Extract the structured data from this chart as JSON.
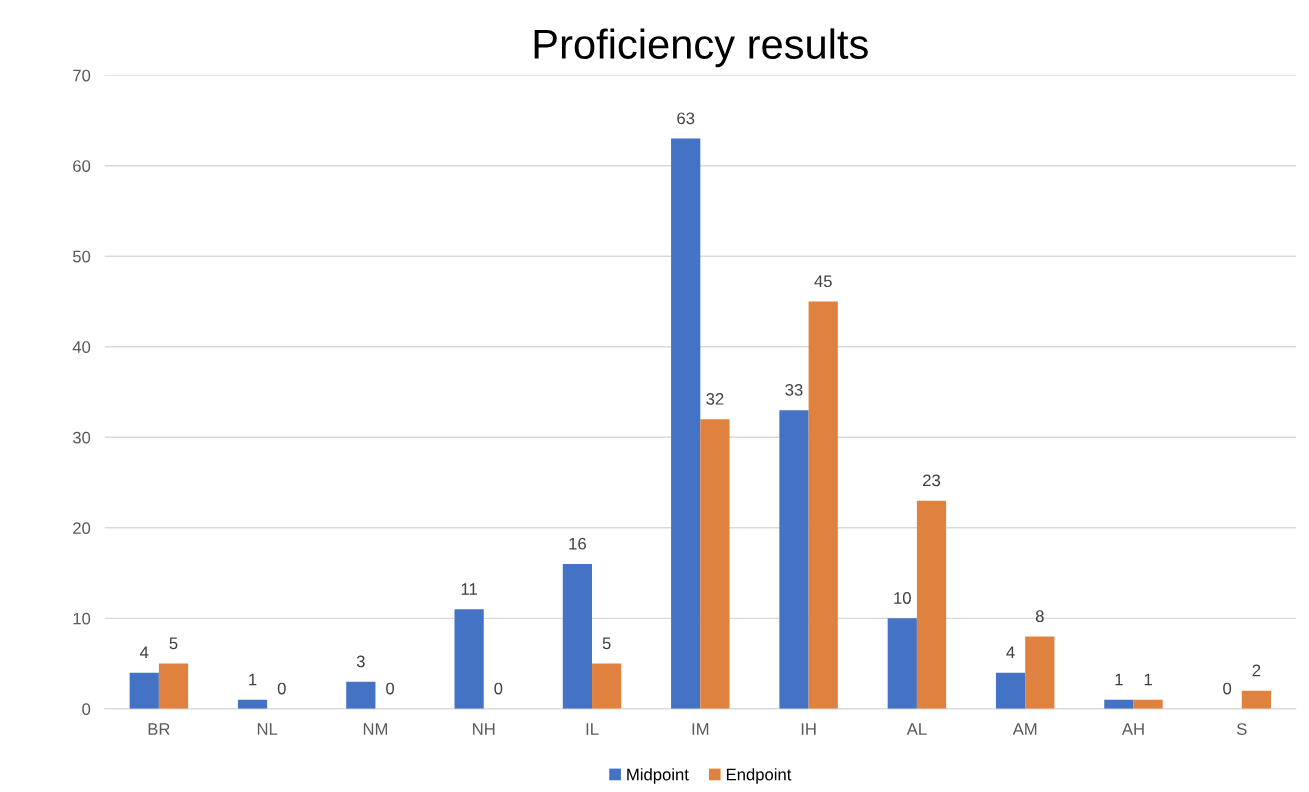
{
  "chart_data": {
    "type": "bar",
    "title": "Proficiency results",
    "categories": [
      "BR",
      "NL",
      "NM",
      "NH",
      "IL",
      "IM",
      "IH",
      "AL",
      "AM",
      "AH",
      "S"
    ],
    "series": [
      {
        "name": "Midpoint",
        "color": "#4472c4",
        "values": [
          4,
          1,
          3,
          11,
          16,
          63,
          33,
          10,
          4,
          1,
          0
        ]
      },
      {
        "name": "Endpoint",
        "color": "#e0823f",
        "values": [
          5,
          0,
          0,
          0,
          5,
          32,
          45,
          23,
          8,
          1,
          2
        ]
      }
    ],
    "ylim": [
      0,
      70
    ],
    "yticks": [
      0,
      10,
      20,
      30,
      40,
      50,
      60,
      70
    ],
    "grid": "y",
    "legend": "bottom",
    "data_labels": true
  }
}
